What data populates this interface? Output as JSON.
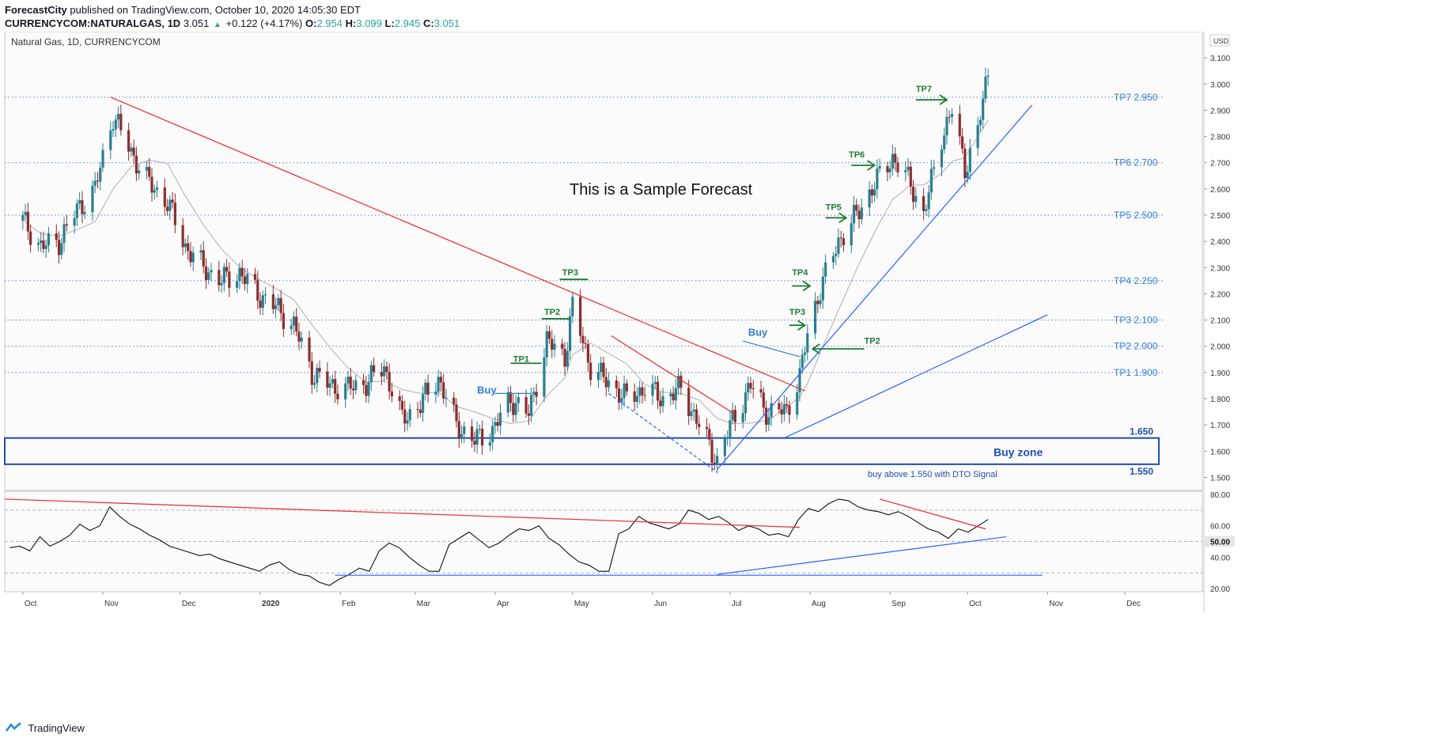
{
  "header": {
    "publisher": "ForecastCity",
    "published_text": "published on TradingView.com, October 10, 2020 14:05:30 EDT",
    "symbol": "CURRENCYCOM:NATURALGAS, 1D",
    "last": "3.051",
    "change": "+0.122 (+4.17%)",
    "o_label": "O:",
    "o_value": "2.954",
    "h_label": "H:",
    "h_value": "3.099",
    "l_label": "L:",
    "l_value": "2.945",
    "c_label": "C:",
    "c_value": "3.051"
  },
  "footer": {
    "brand": "TradingView"
  },
  "colors": {
    "up": "#26a69a",
    "candle_up": "#2a7f8f",
    "candle_down": "#8b2e2e",
    "trend_red": "#ef2b2b",
    "trend_blue": "#2962ff",
    "tp_green": "#1e7d32",
    "label_blue": "#2f7fd6",
    "zone_blue": "#1f4eb4"
  },
  "chart_data": [
    {
      "type": "candlestick",
      "title": "Natural Gas, 1D, CURRENCYCOM",
      "annotation": "This is a Sample Forecast",
      "currency": "USD",
      "ylim": [
        1.45,
        3.2
      ],
      "y_ticks": [
        "1.500",
        "1.600",
        "1.700",
        "1.800",
        "1.900",
        "2.000",
        "2.100",
        "2.200",
        "2.300",
        "2.400",
        "2.500",
        "2.600",
        "2.700",
        "2.800",
        "2.900",
        "3.000",
        "3.100",
        "3.200"
      ],
      "x_ticks": [
        "Oct",
        "Nov",
        "Dec",
        "2020",
        "Feb",
        "Mar",
        "Apr",
        "May",
        "Jun",
        "Jul",
        "Aug",
        "Sep",
        "Oct",
        "Nov",
        "Dec"
      ],
      "close_series": [
        {
          "d": "2019-10-01",
          "v": 2.48
        },
        {
          "d": "2019-10-08",
          "v": 2.38
        },
        {
          "d": "2019-10-15",
          "v": 2.4
        },
        {
          "d": "2019-10-22",
          "v": 2.52
        },
        {
          "d": "2019-10-29",
          "v": 2.6
        },
        {
          "d": "2019-11-05",
          "v": 2.88
        },
        {
          "d": "2019-11-12",
          "v": 2.74
        },
        {
          "d": "2019-11-19",
          "v": 2.62
        },
        {
          "d": "2019-11-26",
          "v": 2.55
        },
        {
          "d": "2019-12-03",
          "v": 2.38
        },
        {
          "d": "2019-12-10",
          "v": 2.3
        },
        {
          "d": "2019-12-17",
          "v": 2.25
        },
        {
          "d": "2019-12-24",
          "v": 2.28
        },
        {
          "d": "2019-12-31",
          "v": 2.2
        },
        {
          "d": "2020-01-07",
          "v": 2.15
        },
        {
          "d": "2020-01-14",
          "v": 2.08
        },
        {
          "d": "2020-01-21",
          "v": 1.9
        },
        {
          "d": "2020-01-28",
          "v": 1.85
        },
        {
          "d": "2020-02-04",
          "v": 1.84
        },
        {
          "d": "2020-02-11",
          "v": 1.86
        },
        {
          "d": "2020-02-18",
          "v": 1.92
        },
        {
          "d": "2020-02-25",
          "v": 1.72
        },
        {
          "d": "2020-03-03",
          "v": 1.78
        },
        {
          "d": "2020-03-10",
          "v": 1.88
        },
        {
          "d": "2020-03-17",
          "v": 1.7
        },
        {
          "d": "2020-03-24",
          "v": 1.64
        },
        {
          "d": "2020-03-31",
          "v": 1.68
        },
        {
          "d": "2020-04-07",
          "v": 1.8
        },
        {
          "d": "2020-04-14",
          "v": 1.74
        },
        {
          "d": "2020-04-21",
          "v": 2.02
        },
        {
          "d": "2020-04-28",
          "v": 1.96
        },
        {
          "d": "2020-05-01",
          "v": 2.15
        },
        {
          "d": "2020-05-08",
          "v": 1.92
        },
        {
          "d": "2020-05-15",
          "v": 1.86
        },
        {
          "d": "2020-05-22",
          "v": 1.8
        },
        {
          "d": "2020-05-29",
          "v": 1.84
        },
        {
          "d": "2020-06-05",
          "v": 1.8
        },
        {
          "d": "2020-06-12",
          "v": 1.84
        },
        {
          "d": "2020-06-19",
          "v": 1.7
        },
        {
          "d": "2020-06-26",
          "v": 1.56
        },
        {
          "d": "2020-07-02",
          "v": 1.72
        },
        {
          "d": "2020-07-09",
          "v": 1.85
        },
        {
          "d": "2020-07-16",
          "v": 1.74
        },
        {
          "d": "2020-07-23",
          "v": 1.76
        },
        {
          "d": "2020-07-28",
          "v": 1.88
        },
        {
          "d": "2020-07-31",
          "v": 2.05
        },
        {
          "d": "2020-08-05",
          "v": 2.22
        },
        {
          "d": "2020-08-12",
          "v": 2.4
        },
        {
          "d": "2020-08-19",
          "v": 2.5
        },
        {
          "d": "2020-08-26",
          "v": 2.62
        },
        {
          "d": "2020-09-02",
          "v": 2.72
        },
        {
          "d": "2020-09-09",
          "v": 2.62
        },
        {
          "d": "2020-09-14",
          "v": 2.5
        },
        {
          "d": "2020-09-21",
          "v": 2.8
        },
        {
          "d": "2020-09-25",
          "v": 2.9
        },
        {
          "d": "2020-09-30",
          "v": 2.68
        },
        {
          "d": "2020-10-05",
          "v": 2.82
        },
        {
          "d": "2020-10-09",
          "v": 3.05
        }
      ],
      "price_levels": [
        {
          "label": "TP7 2.950",
          "value": 2.95
        },
        {
          "label": "TP6 2.700",
          "value": 2.7
        },
        {
          "label": "TP5 2.500",
          "value": 2.5
        },
        {
          "label": "TP4 2.250",
          "value": 2.25
        },
        {
          "label": "TP3 2.100",
          "value": 2.1
        },
        {
          "label": "TP2 2.000",
          "value": 2.0
        },
        {
          "label": "TP1 1.900",
          "value": 1.9
        }
      ],
      "buy_zone": {
        "label": "Buy zone",
        "top": 1.65,
        "bottom": 1.55,
        "top_label": "1.650",
        "bottom_label": "1.550",
        "note": "buy above 1.550 with DTO Signal"
      },
      "markers": [
        {
          "text": "TP1",
          "d": "2020-04-08",
          "v": 1.94
        },
        {
          "text": "TP2",
          "d": "2020-04-20",
          "v": 2.12
        },
        {
          "text": "TP3",
          "d": "2020-04-27",
          "v": 2.27
        },
        {
          "text": "TP3",
          "d": "2020-07-24",
          "v": 2.12
        },
        {
          "text": "TP4",
          "d": "2020-07-25",
          "v": 2.27
        },
        {
          "text": "TP5",
          "d": "2020-08-07",
          "v": 2.52
        },
        {
          "text": "TP6",
          "d": "2020-08-16",
          "v": 2.72
        },
        {
          "text": "TP7",
          "d": "2020-09-11",
          "v": 2.97
        },
        {
          "text": "TP2",
          "d": "2020-08-22",
          "v": 2.01
        },
        {
          "text": "Buy",
          "d": "2020-03-25",
          "v": 1.82
        },
        {
          "text": "Buy",
          "d": "2020-07-08",
          "v": 2.04
        }
      ]
    },
    {
      "type": "line",
      "title": "",
      "ylim": [
        18,
        82
      ],
      "y_ticks": [
        "20.00",
        "40.00",
        "60.00",
        "80.00"
      ],
      "highlight_tick": "50.00",
      "reference_levels": [
        70,
        50,
        30
      ],
      "values": [
        46,
        47,
        44,
        53,
        47,
        50,
        54,
        61,
        57,
        60,
        72,
        66,
        61,
        58,
        54,
        51,
        47,
        45,
        43,
        41,
        42,
        39,
        37,
        35,
        33,
        31,
        35,
        37,
        32,
        29,
        28,
        24,
        22,
        26,
        29,
        33,
        31,
        44,
        49,
        46,
        40,
        35,
        31,
        31,
        48,
        52,
        56,
        51,
        46,
        49,
        54,
        58,
        57,
        60,
        52,
        48,
        42,
        37,
        35,
        31,
        31,
        55,
        58,
        66,
        62,
        60,
        58,
        61,
        70,
        68,
        64,
        66,
        62,
        57,
        60,
        58,
        54,
        55,
        53,
        64,
        71,
        69,
        74,
        77,
        76,
        72,
        70,
        69,
        67,
        69,
        66,
        62,
        58,
        56,
        52,
        58,
        56,
        60,
        64
      ]
    }
  ]
}
